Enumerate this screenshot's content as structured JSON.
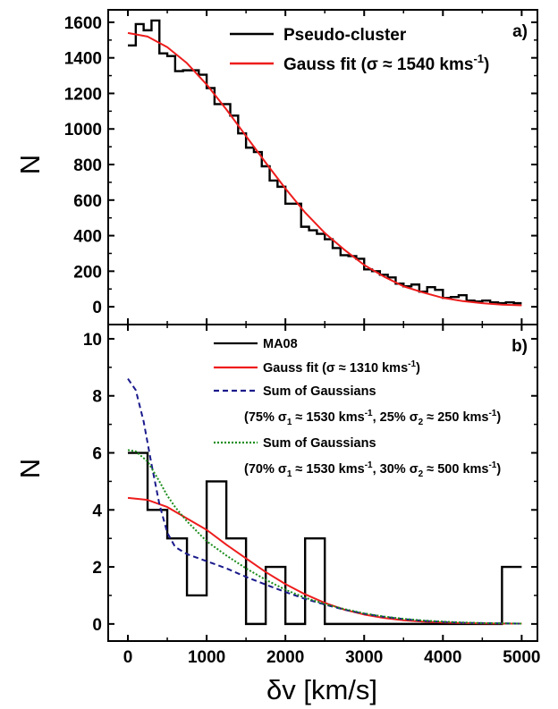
{
  "chart_data": [
    {
      "panel": "a",
      "type": "line",
      "panel_label": "a)",
      "ylabel": "N",
      "xlim": [
        -250,
        5200
      ],
      "ylim": [
        -100,
        1670
      ],
      "x_ticks": [
        0,
        1000,
        2000,
        3000,
        4000,
        5000
      ],
      "x_tick_labels_shown": false,
      "y_ticks": [
        0,
        200,
        400,
        600,
        800,
        1000,
        1200,
        1400,
        1600
      ],
      "legend_position": "top-right",
      "series": [
        {
          "name": "Pseudo-cluster",
          "kind": "histogram",
          "color": "#000000",
          "bin_width": 100,
          "bin_starts": [
            0,
            100,
            200,
            300,
            400,
            500,
            600,
            700,
            800,
            900,
            1000,
            1100,
            1200,
            1300,
            1400,
            1500,
            1600,
            1700,
            1800,
            1900,
            2000,
            2100,
            2200,
            2300,
            2400,
            2500,
            2600,
            2700,
            2800,
            2900,
            3000,
            3100,
            3200,
            3300,
            3400,
            3500,
            3600,
            3700,
            3800,
            3900,
            4000,
            4100,
            4200,
            4300,
            4400,
            4500,
            4600,
            4700,
            4800,
            4900
          ],
          "values": [
            1470,
            1590,
            1555,
            1610,
            1425,
            1410,
            1325,
            1330,
            1330,
            1305,
            1230,
            1140,
            1140,
            1075,
            975,
            895,
            870,
            790,
            710,
            675,
            580,
            580,
            450,
            430,
            410,
            380,
            330,
            290,
            285,
            270,
            210,
            200,
            180,
            165,
            130,
            115,
            125,
            85,
            110,
            95,
            50,
            55,
            65,
            35,
            30,
            35,
            25,
            20,
            25,
            20
          ]
        },
        {
          "name": "Gauss fit (σ ≈ 1540 kms⁻¹)",
          "legend_text": "Gauss fit (σ ≈ 1540 kms",
          "legend_sup": "-1",
          "legend_close": ")",
          "kind": "curve",
          "color": "#ee1c1c",
          "x": [
            0,
            250,
            500,
            750,
            1000,
            1250,
            1500,
            1750,
            2000,
            2250,
            2500,
            2750,
            3000,
            3250,
            3500,
            3750,
            4000,
            4250,
            4500,
            4750,
            5000
          ],
          "values": [
            1540,
            1520,
            1460,
            1370,
            1250,
            1110,
            960,
            810,
            665,
            530,
            415,
            320,
            235,
            170,
            115,
            80,
            50,
            32,
            20,
            12,
            8
          ]
        }
      ]
    },
    {
      "panel": "b",
      "type": "line",
      "panel_label": "b)",
      "xlabel": "δv [km/s]",
      "ylabel": "N",
      "xlim": [
        -250,
        5200
      ],
      "ylim": [
        -0.6,
        10.5
      ],
      "x_ticks": [
        0,
        1000,
        2000,
        3000,
        4000,
        5000
      ],
      "y_ticks": [
        0,
        2,
        4,
        6,
        8,
        10
      ],
      "legend_position": "top-right",
      "series": [
        {
          "name": "MA08",
          "kind": "histogram",
          "color": "#000000",
          "bin_width": 250,
          "bin_starts": [
            0,
            250,
            500,
            750,
            1000,
            1250,
            1500,
            1750,
            2000,
            2250,
            2500,
            2750,
            3000,
            3250,
            3500,
            3750,
            4000,
            4250,
            4500,
            4750
          ],
          "values": [
            6,
            4,
            3,
            1,
            5,
            3,
            0,
            2,
            0,
            3,
            0,
            0,
            0,
            0,
            0,
            0,
            0,
            0,
            0,
            2
          ]
        },
        {
          "name": "Gauss fit (σ ≈ 1310 kms⁻¹)",
          "legend_text": "Gauss fit (σ ≈ 1310 kms",
          "legend_sup": "-1",
          "legend_close": ")",
          "kind": "curve",
          "color": "#ee1c1c",
          "x": [
            0,
            250,
            500,
            750,
            1000,
            1250,
            1500,
            1750,
            2000,
            2250,
            2500,
            2750,
            3000,
            3250,
            3500,
            3750,
            4000,
            4250,
            4500,
            4750,
            5000
          ],
          "values": [
            4.42,
            4.35,
            4.1,
            3.7,
            3.3,
            2.78,
            2.3,
            1.82,
            1.4,
            1.04,
            0.74,
            0.5,
            0.33,
            0.21,
            0.13,
            0.08,
            0.05,
            0.03,
            0.02,
            0.01,
            0.01
          ]
        },
        {
          "name": "Sum of Gaussians (75% σ1 ≈ 1530 kms⁻¹, 25% σ2 ≈ 250 kms⁻¹)",
          "legend_line1": "Sum of Gaussians",
          "legend_line2": "(75% σ",
          "legend_sub1": "1",
          "legend_mid": " ≈ 1530 kms",
          "legend_sup1": "-1",
          "legend_mid2": ", 25% σ",
          "legend_sub2": "2",
          "legend_mid3": " ≈ 250 kms",
          "legend_sup2": "-1",
          "legend_close": ")",
          "kind": "curve",
          "style": "dashed",
          "color": "#1a1a8c",
          "x": [
            0,
            100,
            200,
            300,
            400,
            500,
            600,
            750,
            1000,
            1250,
            1500,
            1750,
            2000,
            2250,
            2500,
            2750,
            3000,
            3250,
            3500,
            3750,
            4000,
            4250,
            4500,
            4750,
            5000
          ],
          "values": [
            8.6,
            8.2,
            7.1,
            5.6,
            4.2,
            3.2,
            2.7,
            2.45,
            2.2,
            1.95,
            1.65,
            1.38,
            1.12,
            0.88,
            0.68,
            0.5,
            0.36,
            0.25,
            0.17,
            0.11,
            0.07,
            0.04,
            0.03,
            0.02,
            0.01
          ]
        },
        {
          "name": "Sum of Gaussians (70% σ1 ≈ 1530 kms⁻¹, 30% σ2 ≈ 500 kms⁻¹)",
          "legend_line1": "Sum of Gaussians",
          "legend_line2": "(70% σ",
          "legend_sub1": "1",
          "legend_mid": " ≈ 1530 kms",
          "legend_sup1": "-1",
          "legend_mid2": ", 30% σ",
          "legend_sub2": "2",
          "legend_mid3": " ≈ 500 kms",
          "legend_sup2": "-1",
          "legend_close": ")",
          "kind": "curve",
          "style": "dotted",
          "color": "#1a8c1a",
          "x": [
            0,
            100,
            250,
            400,
            500,
            600,
            750,
            1000,
            1250,
            1500,
            1750,
            2000,
            2250,
            2500,
            2750,
            3000,
            3250,
            3500,
            3750,
            4000,
            4250,
            4500,
            4750,
            5000
          ],
          "values": [
            6.1,
            6.05,
            5.7,
            5.0,
            4.5,
            4.1,
            3.6,
            2.9,
            2.4,
            1.95,
            1.55,
            1.2,
            0.92,
            0.7,
            0.52,
            0.37,
            0.26,
            0.18,
            0.12,
            0.08,
            0.05,
            0.03,
            0.02,
            0.01
          ]
        }
      ]
    }
  ]
}
